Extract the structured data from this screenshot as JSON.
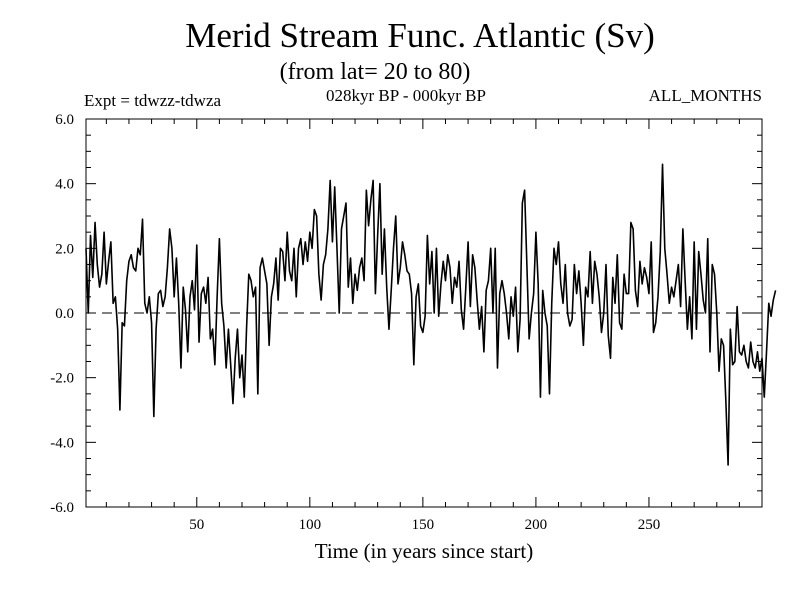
{
  "chart_data": {
    "type": "line",
    "title": "Merid Stream Func. Atlantic (Sv)",
    "subtitle": "(from lat= 20 to 80)",
    "annotations": {
      "experiment": "Expt = tdwzz-tdwza",
      "period": "028kyr BP - 000kyr BP",
      "months": "ALL_MONTHS"
    },
    "xlabel": "Time (in years since start)",
    "ylabel": "",
    "xlim": [
      1,
      300
    ],
    "ylim": [
      -6,
      6
    ],
    "x_ticks": [
      50,
      100,
      150,
      200,
      250
    ],
    "x_tick_labels": [
      "50",
      "100",
      "150",
      "200",
      "250"
    ],
    "y_ticks": [
      -6,
      -4,
      -2,
      0,
      2,
      4,
      6
    ],
    "y_tick_labels": [
      "-6.0",
      "-4.0",
      "-2.0",
      "0.0",
      "2.0",
      "4.0",
      "6.0"
    ],
    "reference_line": {
      "y": 0,
      "style": "dashed"
    },
    "grid": false,
    "series": [
      {
        "x_start": 1,
        "x_step": 1,
        "values": [
          2.0,
          0.0,
          2.4,
          1.1,
          2.8,
          1.5,
          0.8,
          1.2,
          2.5,
          0.9,
          1.6,
          2.2,
          0.3,
          0.5,
          -0.5,
          -3.0,
          -0.3,
          -0.4,
          1.0,
          1.6,
          1.8,
          1.4,
          1.3,
          2.0,
          1.8,
          2.9,
          0.3,
          0.0,
          0.5,
          -0.3,
          -3.2,
          -0.5,
          0.6,
          0.7,
          0.2,
          0.5,
          1.4,
          2.6,
          2.0,
          0.5,
          1.7,
          0.3,
          -1.7,
          0.8,
          0.1,
          -1.2,
          0.5,
          1.0,
          0.1,
          2.1,
          -0.9,
          0.6,
          0.8,
          0.3,
          1.1,
          -0.8,
          -0.5,
          -1.6,
          0.5,
          2.3,
          0.3,
          -0.4,
          -1.7,
          -0.5,
          -1.6,
          -2.8,
          -1.4,
          -0.5,
          -2.0,
          -1.3,
          -2.6,
          -0.5,
          1.2,
          1.0,
          0.5,
          0.8,
          -2.5,
          1.4,
          1.7,
          1.3,
          0.9,
          -1.0,
          0.5,
          0.9,
          1.7,
          0.4,
          2.0,
          1.9,
          1.0,
          2.5,
          1.3,
          1.0,
          2.0,
          0.5,
          2.0,
          2.3,
          1.5,
          2.2,
          1.6,
          2.5,
          2.0,
          3.2,
          3.0,
          1.2,
          0.4,
          1.5,
          1.8,
          2.6,
          4.1,
          2.2,
          3.9,
          2.0,
          0.0,
          2.6,
          3.0,
          3.4,
          0.8,
          1.7,
          0.3,
          1.2,
          0.7,
          1.4,
          1.7,
          1.0,
          3.8,
          2.7,
          3.5,
          4.1,
          0.6,
          2.4,
          4.0,
          1.2,
          2.6,
          0.8,
          -0.5,
          0.7,
          2.0,
          3.0,
          0.9,
          1.4,
          2.2,
          1.8,
          1.3,
          1.2,
          0.6,
          -1.6,
          0.5,
          0.9,
          -0.4,
          -0.6,
          -0.1,
          2.4,
          0.9,
          1.9,
          0.0,
          2.0,
          -0.1,
          0.9,
          1.6,
          1.0,
          1.8,
          1.4,
          0.3,
          1.1,
          0.8,
          1.6,
          0.1,
          -0.5,
          0.8,
          2.2,
          0.2,
          1.8,
          1.4,
          0.4,
          -0.5,
          0.2,
          -1.2,
          0.7,
          1.0,
          2.0,
          0.0,
          2.0,
          -1.7,
          0.6,
          1.0,
          0.6,
          0.0,
          -0.8,
          0.5,
          -0.1,
          0.8,
          -1.2,
          -0.2,
          3.4,
          3.8,
          1.5,
          -0.8,
          0.0,
          0.6,
          2.5,
          0.9,
          -2.6,
          0.7,
          0.0,
          -0.4,
          -2.5,
          0.3,
          2.0,
          1.5,
          2.2,
          0.9,
          0.3,
          1.5,
          0.0,
          -0.4,
          -0.2,
          1.5,
          0.6,
          1.3,
          0.3,
          -1.0,
          0.8,
          0.5,
          1.9,
          0.3,
          1.6,
          1.2,
          0.5,
          -0.6,
          0.0,
          1.5,
          -0.7,
          -1.4,
          1.1,
          0.3,
          1.8,
          -0.3,
          -0.5,
          1.2,
          0.6,
          0.6,
          2.8,
          2.6,
          0.7,
          0.2,
          1.6,
          0.9,
          1.4,
          1.1,
          0.6,
          2.2,
          -0.6,
          -0.3,
          0.5,
          1.9,
          4.6,
          2.0,
          1.2,
          0.3,
          0.8,
          0.5,
          1.0,
          1.5,
          0.2,
          2.6,
          1.0,
          -0.5,
          0.5,
          -0.8,
          2.2,
          -0.5,
          1.9,
          1.2,
          0.4,
          0.0,
          2.3,
          -1.2,
          1.5,
          1.2,
          0.0,
          -1.8,
          -0.8,
          -1.0,
          -2.7,
          -4.7,
          -0.5,
          -1.6,
          -1.5,
          0.2,
          -1.2,
          -1.3,
          -1.0,
          -1.5,
          -1.7,
          -0.9,
          -1.5,
          -1.7,
          -1.2,
          -1.8,
          -1.4,
          -2.6,
          -1.2,
          0.3,
          -0.1,
          0.4,
          0.7
        ]
      }
    ]
  }
}
